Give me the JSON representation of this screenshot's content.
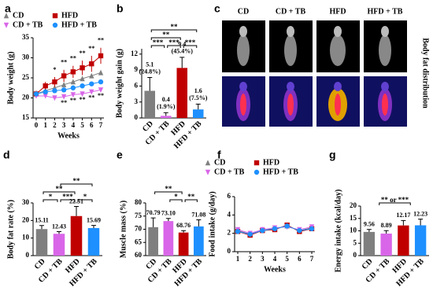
{
  "chart_data": [
    {
      "panel": "a",
      "type": "line",
      "ylabel": "Body weight (g)",
      "xlabel": "Weeks",
      "x": [
        0,
        1,
        2,
        3,
        4,
        5,
        6,
        7
      ],
      "xlim": [
        0,
        7
      ],
      "xticks": [
        0,
        1,
        2,
        3,
        4,
        5,
        6,
        7
      ],
      "ylim": [
        15,
        35
      ],
      "yticks": [
        15,
        20,
        25,
        30,
        35
      ],
      "series": [
        {
          "name": "CD",
          "color": "#7f7f7f",
          "marker": "triangle",
          "values": [
            21,
            21.8,
            22.5,
            23.3,
            24,
            24.8,
            25.5,
            26.3
          ]
        },
        {
          "name": "HFD",
          "color": "#c00000",
          "marker": "square",
          "values": [
            21,
            23,
            24,
            25.5,
            26.5,
            27.5,
            28.5,
            30.5
          ],
          "errors": [
            0.8,
            1,
            1.2,
            1.5,
            1.5,
            1.8,
            2,
            2
          ],
          "significance": [
            null,
            null,
            "*",
            "**",
            "**",
            "**",
            "**",
            "**"
          ]
        },
        {
          "name": "CD + TB",
          "color": "#d966e8",
          "marker": "triangle-down",
          "values": [
            20.5,
            20.5,
            20,
            20.3,
            20.8,
            21,
            21.5,
            22
          ],
          "significance": [
            null,
            null,
            null,
            "**",
            "**",
            "**",
            "**",
            "**"
          ]
        },
        {
          "name": "HFD + TB",
          "color": "#1e90ff",
          "marker": "circle",
          "values": [
            21,
            21.5,
            21.8,
            22,
            22.5,
            23,
            23.5,
            24
          ]
        }
      ]
    },
    {
      "panel": "b",
      "type": "bar",
      "ylabel": "Body weight gain (g)",
      "categories": [
        "CD",
        "CD + TB",
        "HFD",
        "HFD + TB"
      ],
      "values": [
        5.1,
        0.4,
        9.4,
        1.6
      ],
      "errors": [
        2.5,
        0.6,
        2,
        1
      ],
      "percent_labels": [
        "(24.8%)",
        "(1.9%)",
        "(45.4%)",
        "(7.5%)"
      ],
      "colors": [
        "#7f7f7f",
        "#d966e8",
        "#c00000",
        "#1e90ff"
      ],
      "ylim": [
        0,
        13
      ],
      "yticks": [
        0,
        3,
        6,
        9,
        12
      ],
      "brackets": [
        {
          "from": 0,
          "to": 1,
          "label": "***"
        },
        {
          "from": 1,
          "to": 2,
          "label": "***"
        },
        {
          "from": 2,
          "to": 3,
          "label": "***"
        },
        {
          "from": 0,
          "to": 2,
          "label": "**"
        },
        {
          "from": 0,
          "to": 3,
          "label": "**"
        }
      ]
    },
    {
      "panel": "c",
      "type": "image-grid",
      "labels": [
        "CD",
        "CD + TB",
        "HFD",
        "HFD + TB"
      ],
      "side_label": "Body fat distribution"
    },
    {
      "panel": "d",
      "type": "bar",
      "ylabel": "Body fat rate (%)",
      "categories": [
        "CD",
        "CD + TB",
        "HFD",
        "HFD + TB"
      ],
      "values": [
        15.11,
        12.43,
        22.51,
        15.69
      ],
      "errors": [
        2,
        1.2,
        5.5,
        1.5
      ],
      "colors": [
        "#7f7f7f",
        "#d966e8",
        "#c00000",
        "#1e90ff"
      ],
      "ylim": [
        0,
        30
      ],
      "yticks": [
        0,
        10,
        20,
        30
      ],
      "brackets": [
        {
          "from": 0,
          "to": 1,
          "label": "*"
        },
        {
          "from": 1,
          "to": 2,
          "label": "***"
        },
        {
          "from": 2,
          "to": 3,
          "label": "*"
        },
        {
          "from": 0,
          "to": 2,
          "label": "**"
        },
        {
          "from": 1,
          "to": 3,
          "label": "**"
        }
      ]
    },
    {
      "panel": "e",
      "type": "bar",
      "ylabel": "Muscle mass (%)",
      "categories": [
        "CD",
        "CD + TB",
        "HFD",
        "HFD + TB"
      ],
      "values": [
        70.79,
        73.1,
        68.76,
        71.08
      ],
      "value_labels": [
        "70.79",
        "73.10",
        "68.76",
        "71.08"
      ],
      "errors": [
        3.5,
        1,
        0.7,
        2.5
      ],
      "colors": [
        "#7f7f7f",
        "#d966e8",
        "#c00000",
        "#1e90ff"
      ],
      "ylim": [
        60,
        80
      ],
      "yticks": [
        60,
        65,
        70,
        75,
        80
      ],
      "brackets": [
        {
          "from": 1,
          "to": 2,
          "label": "*"
        },
        {
          "from": 2,
          "to": 3,
          "label": "**"
        },
        {
          "from": 0,
          "to": 2,
          "label": "**"
        }
      ]
    },
    {
      "panel": "f",
      "type": "line",
      "ylabel": "Food intake (g/day)",
      "xlabel": "Weeks",
      "x": [
        1,
        2,
        3,
        4,
        5,
        6,
        7
      ],
      "xlim": [
        1,
        7
      ],
      "xticks": [
        1,
        2,
        3,
        4,
        5,
        6,
        7
      ],
      "ylim": [
        0,
        6
      ],
      "yticks": [
        0,
        2,
        4,
        6
      ],
      "series": [
        {
          "name": "CD",
          "color": "#7f7f7f",
          "marker": "triangle",
          "values": [
            2.3,
            1.9,
            2.4,
            2.5,
            2.8,
            2.3,
            2.6
          ]
        },
        {
          "name": "HFD",
          "color": "#c00000",
          "marker": "square",
          "values": [
            2.2,
            1.8,
            2.3,
            2.4,
            2.9,
            2.2,
            2.5
          ]
        },
        {
          "name": "CD + TB",
          "color": "#d966e8",
          "marker": "triangle-down",
          "values": [
            2.4,
            2,
            2.4,
            2.6,
            2.7,
            2.4,
            2.7
          ]
        },
        {
          "name": "HFD + TB",
          "color": "#1e90ff",
          "marker": "circle",
          "values": [
            2.2,
            1.9,
            2.3,
            2.5,
            2.8,
            2.3,
            2.5
          ]
        }
      ]
    },
    {
      "panel": "g",
      "type": "bar",
      "ylabel": "Energy intake (kcal/day)",
      "categories": [
        "CD",
        "CD + TB",
        "HFD",
        "HFD + TB"
      ],
      "values": [
        9.56,
        8.89,
        12.17,
        12.23
      ],
      "errors": [
        1,
        1.2,
        2,
        2.5
      ],
      "colors": [
        "#7f7f7f",
        "#d966e8",
        "#c00000",
        "#1e90ff"
      ],
      "ylim": [
        0,
        20
      ],
      "yticks": [
        0,
        5,
        10,
        15,
        20
      ],
      "brackets": [
        {
          "from": 0.5,
          "to": 2.5,
          "label": "** or ***"
        }
      ]
    }
  ]
}
